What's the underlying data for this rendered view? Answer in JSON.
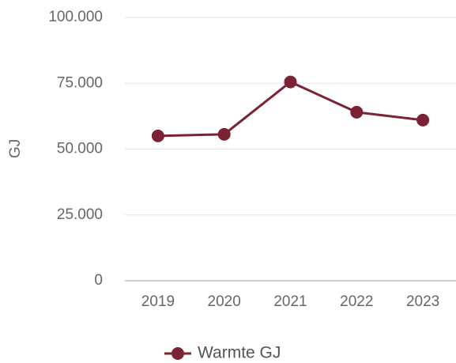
{
  "chart_data": {
    "type": "line",
    "y_label": "GJ",
    "categories": [
      "2019",
      "2020",
      "2021",
      "2022",
      "2023"
    ],
    "series": [
      {
        "name": "Warmte GJ",
        "color": "#7b2335",
        "values": [
          55000,
          55600,
          75500,
          64000,
          61000
        ]
      }
    ],
    "ylim": [
      0,
      100000
    ],
    "yticks": [
      0,
      {
        "value": 25000,
        "label": "25.000"
      },
      {
        "value": 50000,
        "label": "50.000"
      },
      {
        "value": 75000,
        "label": "75.000"
      },
      {
        "value": 100000,
        "label": "100.000"
      }
    ],
    "grid": true,
    "legend": "bottom"
  }
}
